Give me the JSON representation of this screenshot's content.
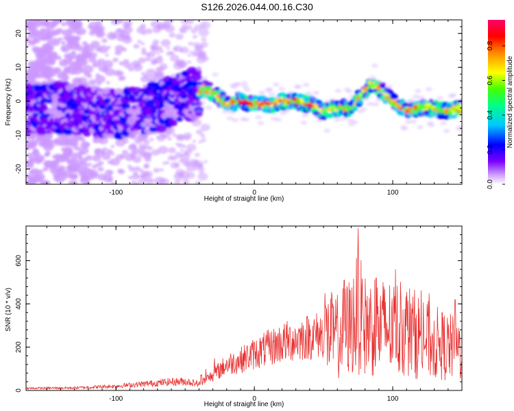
{
  "title": "S126.2026.044.00.16.C30",
  "chart_data": [
    {
      "type": "heatmap",
      "title": "S126.2026.044.00.16.C30",
      "xlabel": "Height of straight line (km)",
      "ylabel": "Frequency (Hz)",
      "xlim": [
        -165,
        150
      ],
      "ylim": [
        -24.5,
        24
      ],
      "xticks": [
        -100,
        0,
        100
      ],
      "yticks": [
        -20,
        -10,
        0,
        10,
        20
      ],
      "colorbar": {
        "label": "Normalized spectral amplitude",
        "range": [
          0.0,
          0.95
        ],
        "ticks": [
          "0.0",
          "0.2",
          "0.4",
          "0.6",
          "0.8"
        ],
        "colors": [
          "#ffffff",
          "#cc99ff",
          "#7a00ff",
          "#0000ff",
          "#00c8ff",
          "#00ff88",
          "#44ff00",
          "#ffff00",
          "#ff8800",
          "#ff0000",
          "#ff0066"
        ]
      },
      "ridge": {
        "x": [
          -165,
          -140,
          -120,
          -100,
          -80,
          -60,
          -45,
          -35,
          -28,
          -20,
          -10,
          0,
          10,
          20,
          30,
          40,
          50,
          60,
          70,
          80,
          85,
          90,
          95,
          100,
          110,
          120,
          130,
          140,
          150
        ],
        "y": [
          -2,
          -2,
          -3,
          -4,
          -3,
          0,
          2,
          4,
          2,
          -1,
          0,
          -1,
          -1,
          0,
          0,
          -1,
          -3,
          -2,
          -2,
          3,
          5,
          4,
          2,
          0,
          -3,
          -2,
          -2,
          -3,
          -2
        ]
      }
    },
    {
      "type": "line",
      "xlabel": "Height of straight line (km)",
      "ylabel": "SNR (10 * v/v)",
      "xlim": [
        -165,
        150
      ],
      "ylim": [
        0,
        760
      ],
      "xticks": [
        -100,
        0,
        100
      ],
      "yticks": [
        0,
        200,
        400,
        600
      ],
      "color": "#e83030",
      "envelope": {
        "x": [
          -165,
          -130,
          -100,
          -80,
          -60,
          -50,
          -40,
          -30,
          -20,
          -10,
          0,
          20,
          40,
          50,
          60,
          70,
          75,
          80,
          90,
          100,
          110,
          120,
          130,
          140,
          150
        ],
        "y": [
          10,
          12,
          20,
          30,
          40,
          42,
          30,
          70,
          120,
          140,
          170,
          220,
          250,
          260,
          250,
          300,
          360,
          300,
          290,
          290,
          280,
          250,
          220,
          200,
          190
        ]
      },
      "peaks": [
        {
          "x": 51,
          "y": 450
        },
        {
          "x": 65,
          "y": 510
        },
        {
          "x": 75,
          "y": 750
        },
        {
          "x": 88,
          "y": 520
        },
        {
          "x": 102,
          "y": 560
        },
        {
          "x": 145,
          "y": 420
        }
      ]
    }
  ]
}
